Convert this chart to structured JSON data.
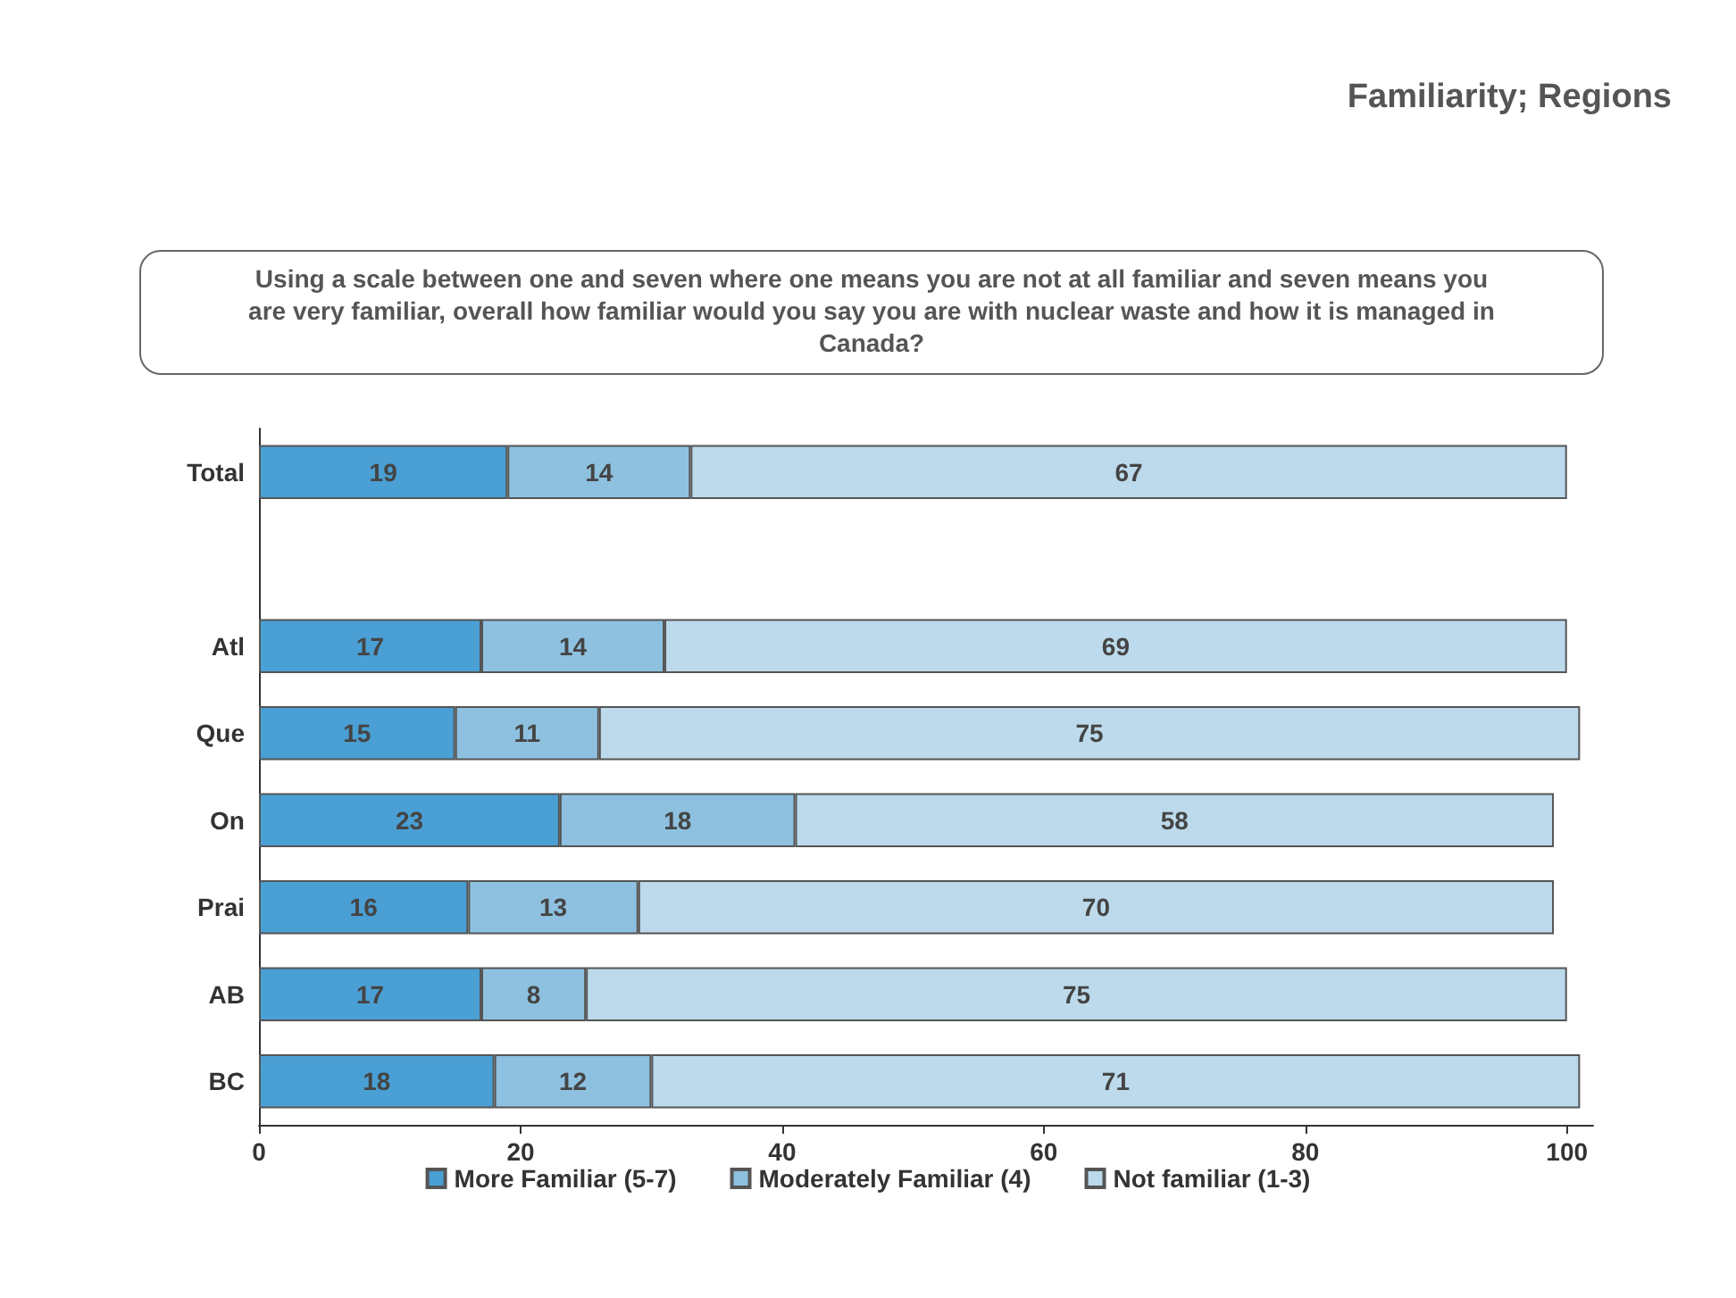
{
  "chart_data": {
    "type": "bar",
    "orientation": "horizontal",
    "stacked": true,
    "title": "Familiarity; Regions",
    "subtitle": "Using a scale between one and seven where one means you are not at all familiar and seven means you are very familiar, overall how familiar would you say you are with nuclear waste and how it is managed in Canada?",
    "categories": [
      "Total",
      null,
      "Atl",
      "Que",
      "On",
      "Prai",
      "AB",
      "BC"
    ],
    "series": [
      {
        "name": "More Familiar (5-7)",
        "color": "#4a9fd4",
        "values": [
          19,
          null,
          17,
          15,
          23,
          16,
          17,
          18
        ]
      },
      {
        "name": "Moderately Familiar (4)",
        "color": "#8ec1e0",
        "values": [
          14,
          null,
          14,
          11,
          18,
          13,
          8,
          12
        ]
      },
      {
        "name": "Not familiar (1-3)",
        "color": "#bcdaeb",
        "values": [
          67,
          null,
          69,
          75,
          58,
          70,
          75,
          71
        ]
      }
    ],
    "xlim": [
      0,
      102
    ],
    "xticks": [
      0,
      20,
      40,
      60,
      80,
      100
    ],
    "grid": false,
    "legend": "bottom",
    "data_labels": true
  }
}
